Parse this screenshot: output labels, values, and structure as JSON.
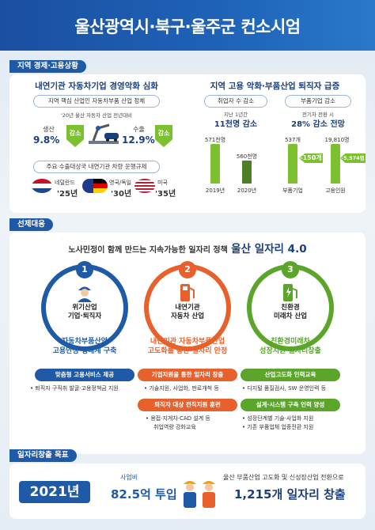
{
  "title": "울산광역시·북구·울주군 컨소시엄",
  "section1": {
    "tab": "지역 경제·고용상황",
    "left": {
      "heading": "내연기관 자동차기업 경영악화 심화",
      "pill": "지역 핵심 산업인 자동차부품 산업 정체",
      "note": "'20년 울산 자동차 산업 전년대비",
      "production_label": "생산",
      "production_value": "9.8%",
      "production_arrow": "감소",
      "export_label": "수출",
      "export_value": "12.9%",
      "export_arrow": "감소",
      "pill2": "주요 수출대상국 내연기관 차량 운행규제",
      "flags": [
        {
          "name": "netherlands-flag",
          "label": "네덜란드",
          "year": "'25년"
        },
        {
          "name": "uk-germany-flag",
          "label": "영국/독일",
          "year": "'30년"
        },
        {
          "name": "usa-flag",
          "label": "미국",
          "year": "'35년"
        }
      ]
    },
    "right": {
      "heading": "지역 고용 악화·부품산업 퇴직자 급증",
      "pill_a": "취업자 수 감소",
      "note_a": "지난 1년간",
      "big_a": "11천명 감소",
      "pill_b": "부품기업 감소",
      "note_b": "전기차 전환 시",
      "big_b": "28% 감소 전망",
      "chart_a": {
        "categories": [
          "2019년",
          "2020년"
        ],
        "values": [
          "571천명",
          "560천명"
        ],
        "values_num": [
          571,
          560
        ]
      },
      "chart_b": {
        "categories": [
          "부품기업",
          "고용인원"
        ],
        "values": [
          "537개",
          "19,810명"
        ],
        "drops": [
          "-150개",
          "-5,574명"
        ]
      },
      "colors": {
        "bar": "#7cbf2f",
        "bar_dark": "#4f7f28"
      }
    }
  },
  "section2": {
    "tab": "선제대응",
    "plan_prefix": "노사민정이 함께 만드는 지속가능한 일자리 정책",
    "plan_name": "울산 일자리 4.0",
    "pillars": [
      {
        "num": "1",
        "label": "위기산업\n기업·퇴직자",
        "strategy": "자동차부품산업\n고용안정 생태계 구축",
        "color": "#1f5aa6",
        "tags": [
          {
            "label": "맞춤형 고용서비스 제공",
            "bullets": [
              "• 퇴직자 구직취 발굴·고용정책금 지원"
            ]
          }
        ]
      },
      {
        "num": "2",
        "label": "내연기관\n자동차 산업",
        "strategy": "내연기관 자동차부품산업\n고도화를 통한 일자리 안정",
        "color": "#e8602b",
        "tags": [
          {
            "label": "기업지원을 통한 일자리 창출",
            "bullets": [
              "• 기술지원, 사업화, 판로개척 등"
            ]
          },
          {
            "label": "퇴직자 대상 전직지원 훈련",
            "bullets": [
              "• 용접·지게차·CAD 설계 등",
              "취업역량 강화교육"
            ]
          }
        ]
      },
      {
        "num": "3",
        "label": "친환경\n미래차 산업",
        "strategy": "친환경미래차\n성장지원 일자리창출",
        "color": "#5aa52a",
        "tags": [
          {
            "label": "산업고도화 인력교육",
            "bullets": [
              "• 디지털 품질검사, SW 운영인력 등"
            ]
          },
          {
            "label": "설계·시스템 구축 인력 양성",
            "bullets": [
              "• 성장단계별 기술·사업화 지원",
              "• 기존 부품업체 업종전환 지원"
            ]
          }
        ]
      }
    ]
  },
  "section3": {
    "tab": "일자리창출 목표",
    "year": "2021년",
    "budget_label": "사업비",
    "budget_value": "82.5억 투입",
    "desc": "울산 부품산업 고도화 및 신성장산업 전환으로",
    "jobs": "1,215개 일자리 창출"
  }
}
